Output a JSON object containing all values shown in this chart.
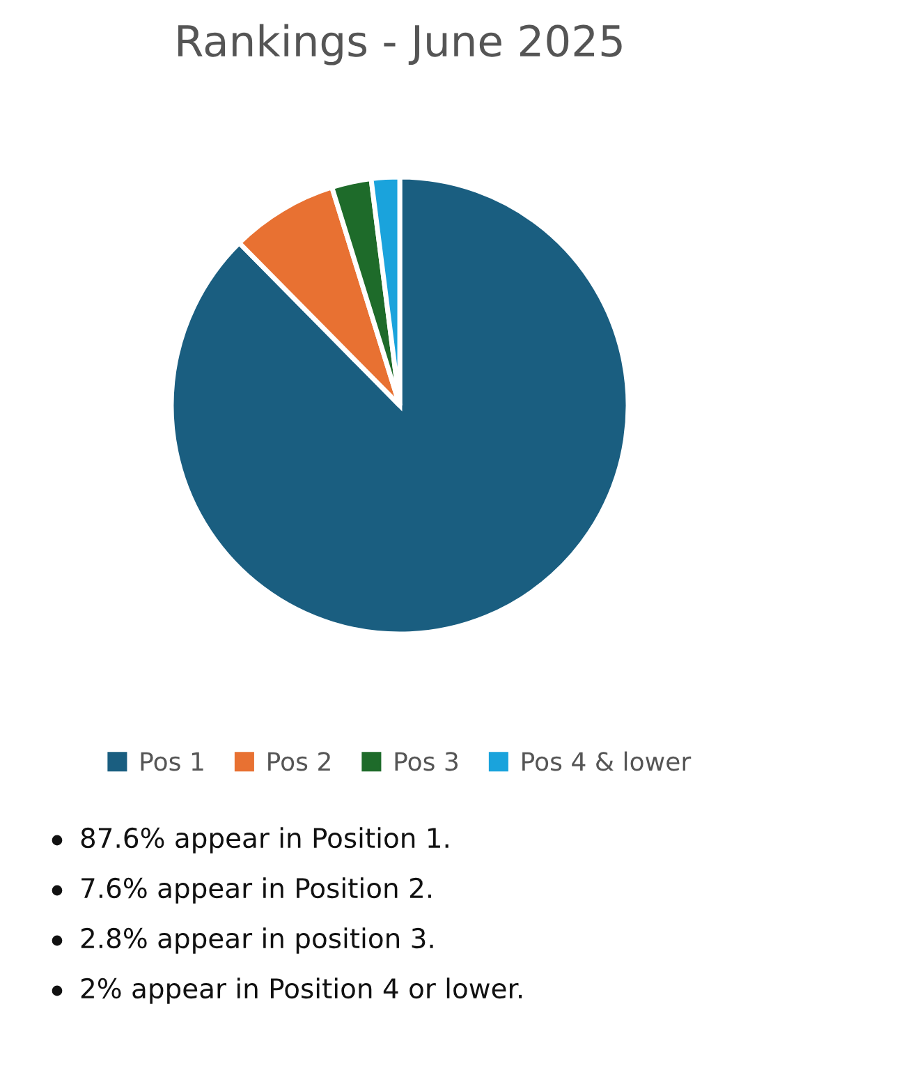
{
  "chart_data": {
    "type": "pie",
    "title": "Rankings - June 2025",
    "categories": [
      "Pos 1",
      "Pos 2",
      "Pos 3",
      "Pos 4 & lower"
    ],
    "values": [
      87.6,
      7.6,
      2.8,
      2
    ],
    "colors": [
      "#1a5e80",
      "#e87132",
      "#1e6b2a",
      "#1aa3dc"
    ],
    "legend": "bottom",
    "annotations": [
      "87.6% appear in Position 1.",
      "7.6% appear in Position 2.",
      "2.8% appear in position 3.",
      "2% appear in Position 4 or lower."
    ]
  }
}
